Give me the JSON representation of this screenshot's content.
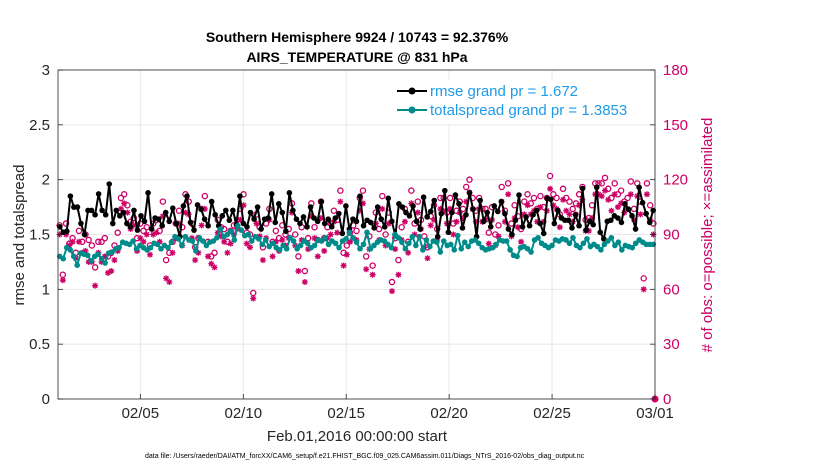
{
  "chart_data": {
    "type": "line",
    "title_line1": "Southern Hemisphere 9924 / 10743 = 92.376%",
    "title_line2": "AIRS_TEMPERATURE @ 831 hPa",
    "xlabel": "Feb.01,2016 00:00:00 start",
    "ylabel_left": "rmse and totalspread",
    "ylabel_right": "# of obs: o=possible; ×=assimilated",
    "xlim": [
      0,
      29
    ],
    "ylim_left": [
      0,
      3
    ],
    "ylim_right": [
      0,
      180
    ],
    "x_ticks": [
      4,
      9,
      14,
      19,
      24,
      29
    ],
    "x_tick_labels": [
      "02/05",
      "02/10",
      "02/15",
      "02/20",
      "02/25",
      "03/01"
    ],
    "y_ticks_left": [
      0,
      0.5,
      1,
      1.5,
      2,
      2.5,
      3
    ],
    "y_tick_labels_left": [
      "0",
      "0.5",
      "1",
      "1.5",
      "2",
      "2.5",
      "3"
    ],
    "y_ticks_right": [
      0,
      30,
      60,
      90,
      120,
      150,
      180
    ],
    "y_tick_labels_right": [
      "0",
      "30",
      "60",
      "90",
      "120",
      "150",
      "180"
    ],
    "grid": true,
    "legend_position": "top-right",
    "colors": {
      "rmse": "#000000",
      "spread": "#008B8B",
      "obs": "#CC0066",
      "right_axis": "#CC0066"
    },
    "series": [
      {
        "name": "rmse grand pr = 1.672",
        "axis": "left",
        "values": [
          1.57,
          1.52,
          1.53,
          1.85,
          1.75,
          1.75,
          1.6,
          1.5,
          1.72,
          1.72,
          1.68,
          1.87,
          1.72,
          1.68,
          1.96,
          1.6,
          1.72,
          1.67,
          1.7,
          1.6,
          1.57,
          1.72,
          1.54,
          1.67,
          1.62,
          1.88,
          1.55,
          1.65,
          1.64,
          1.58,
          1.7,
          1.62,
          1.74,
          1.6,
          1.48,
          1.76,
          1.85,
          1.61,
          1.54,
          1.77,
          1.73,
          1.64,
          1.58,
          1.8,
          1.68,
          1.58,
          1.67,
          1.72,
          1.63,
          1.72,
          1.59,
          1.85,
          1.6,
          1.57,
          1.7,
          1.64,
          1.75,
          1.55,
          1.64,
          1.65,
          1.87,
          1.61,
          1.78,
          1.7,
          1.53,
          1.88,
          1.72,
          1.64,
          1.6,
          1.66,
          1.57,
          1.75,
          1.65,
          1.62,
          1.8,
          1.6,
          1.64,
          1.57,
          1.65,
          1.69,
          1.51,
          1.76,
          1.55,
          1.64,
          1.62,
          1.85,
          1.58,
          1.63,
          1.61,
          1.56,
          1.75,
          1.64,
          1.57,
          1.83,
          1.62,
          1.49,
          1.78,
          1.75,
          1.7,
          1.67,
          1.76,
          1.62,
          1.55,
          1.84,
          1.66,
          1.71,
          1.81,
          1.48,
          1.69,
          1.9,
          1.52,
          1.7,
          1.86,
          1.78,
          1.56,
          1.68,
          1.88,
          1.73,
          1.48,
          1.81,
          1.62,
          1.7,
          1.57,
          1.76,
          1.71,
          1.8,
          1.69,
          1.55,
          1.5,
          1.63,
          1.86,
          1.57,
          1.66,
          1.58,
          1.68,
          1.72,
          1.6,
          1.51,
          1.83,
          1.82,
          1.6,
          1.72,
          1.65,
          1.63,
          1.63,
          1.56,
          1.68,
          1.58,
          1.92,
          1.54,
          1.62,
          1.59,
          1.93,
          1.52,
          1.46,
          1.62,
          1.63,
          1.67,
          1.65,
          1.61,
          1.78,
          1.73,
          1.67,
          1.55,
          1.93,
          1.79,
          1.69,
          1.61,
          1.72
        ]
      },
      {
        "name": "totalspread grand pr = 1.3853",
        "axis": "left",
        "values": [
          1.3,
          1.28,
          1.38,
          1.36,
          1.3,
          1.22,
          1.33,
          1.32,
          1.31,
          1.26,
          1.3,
          1.32,
          1.28,
          1.24,
          1.33,
          1.34,
          1.37,
          1.38,
          1.43,
          1.42,
          1.41,
          1.44,
          1.37,
          1.4,
          1.38,
          1.36,
          1.38,
          1.42,
          1.41,
          1.37,
          1.4,
          1.38,
          1.43,
          1.48,
          1.46,
          1.4,
          1.48,
          1.45,
          1.44,
          1.35,
          1.47,
          1.44,
          1.4,
          1.43,
          1.44,
          1.47,
          1.55,
          1.48,
          1.5,
          1.53,
          1.45,
          1.58,
          1.54,
          1.49,
          1.5,
          1.44,
          1.48,
          1.46,
          1.41,
          1.45,
          1.39,
          1.42,
          1.38,
          1.36,
          1.4,
          1.37,
          1.47,
          1.44,
          1.37,
          1.4,
          1.44,
          1.42,
          1.38,
          1.4,
          1.45,
          1.44,
          1.47,
          1.41,
          1.44,
          1.42,
          1.38,
          1.44,
          1.46,
          1.52,
          1.47,
          1.43,
          1.37,
          1.41,
          1.52,
          1.37,
          1.4,
          1.43,
          1.45,
          1.44,
          1.41,
          1.38,
          1.5,
          1.47,
          1.43,
          1.37,
          1.42,
          1.48,
          1.4,
          1.48,
          1.36,
          1.45,
          1.39,
          1.44,
          1.43,
          1.34,
          1.44,
          1.4,
          1.41,
          1.36,
          1.49,
          1.37,
          1.43,
          1.39,
          1.44,
          1.45,
          1.42,
          1.38,
          1.36,
          1.37,
          1.38,
          1.41,
          1.45,
          1.44,
          1.44,
          1.36,
          1.31,
          1.3,
          1.38,
          1.39,
          1.37,
          1.34,
          1.45,
          1.47,
          1.42,
          1.4,
          1.38,
          1.4,
          1.45,
          1.44,
          1.46,
          1.45,
          1.42,
          1.47,
          1.4,
          1.38,
          1.42,
          1.46,
          1.39,
          1.41,
          1.39,
          1.36,
          1.41,
          1.44,
          1.47,
          1.4,
          1.43,
          1.36,
          1.4,
          1.39,
          1.38,
          1.42,
          1.45,
          1.43,
          1.41,
          1.41,
          1.41
        ]
      },
      {
        "name": "obs possible",
        "axis": "right",
        "marker": "o",
        "values": [
          95,
          68,
          96,
          85,
          88,
          80,
          92,
          86,
          90,
          87,
          84,
          72,
          86,
          86,
          88,
          78,
          80,
          84,
          91,
          110,
          112,
          106,
          97,
          99,
          88,
          96,
          92,
          94,
          84,
          96,
          98,
          92,
          108,
          76,
          80,
          86,
          96,
          103,
          94,
          112,
          108,
          96,
          83,
          88,
          104,
          111,
          86,
          78,
          80,
          98,
          94,
          93,
          86,
          92,
          95,
          98,
          104,
          112,
          91,
          90,
          58,
          101,
          94,
          83,
          96,
          104,
          86,
          92,
          88,
          95,
          90,
          93,
          107,
          90,
          78,
          94,
          70,
          88,
          107,
          94,
          87,
          108,
          88,
          94,
          96,
          103,
          98,
          114,
          80,
          84,
          91,
          95,
          92,
          110,
          114,
          78,
          89,
          73,
          102,
          93,
          111,
          90,
          102,
          64,
          88,
          76,
          94,
          104,
          86,
          114,
          96,
          108,
          98,
          89,
          83,
          100,
          106,
          93,
          110,
          110,
          102,
          110,
          96,
          103,
          108,
          104,
          116,
          120,
          110,
          103,
          110,
          104,
          104,
          91,
          105,
          90,
          95,
          116,
          103,
          118,
          96,
          106,
          100,
          93,
          108,
          112,
          107,
          110,
          104,
          111,
          105,
          110,
          122,
          112,
          110,
          101,
          115,
          110,
          108,
          104,
          107,
          112,
          116,
          98,
          99,
          106,
          118,
          118,
          118,
          121,
          115,
          110,
          118,
          112,
          114,
          108,
          110,
          119,
          104,
          118,
          108,
          66,
          118,
          106,
          96
        ]
      },
      {
        "name": "obs assimilated",
        "axis": "right",
        "marker": "x",
        "values": [
          90,
          65,
          90,
          84,
          86,
          77,
          86,
          80,
          81,
          75,
          75,
          62,
          80,
          75,
          78,
          69,
          70,
          76,
          81,
          104,
          107,
          102,
          93,
          95,
          81,
          88,
          86,
          90,
          79,
          90,
          91,
          86,
          100,
          66,
          64,
          80,
          88,
          96,
          84,
          102,
          101,
          88,
          76,
          80,
          95,
          104,
          78,
          74,
          72,
          91,
          89,
          86,
          80,
          85,
          90,
          93,
          98,
          106,
          85,
          83,
          55,
          96,
          89,
          76,
          88,
          98,
          78,
          86,
          81,
          87,
          84,
          88,
          102,
          84,
          70,
          87,
          64,
          82,
          100,
          88,
          78,
          99,
          81,
          88,
          90,
          97,
          91,
          108,
          73,
          79,
          86,
          88,
          87,
          103,
          107,
          71,
          82,
          68,
          96,
          87,
          104,
          84,
          96,
          59,
          82,
          68,
          87,
          97,
          80,
          107,
          90,
          102,
          93,
          83,
          77,
          95,
          98,
          87,
          104,
          103,
          96,
          104,
          90,
          97,
          102,
          99,
          108,
          113,
          104,
          97,
          104,
          97,
          98,
          85,
          98,
          84,
          89,
          108,
          97,
          112,
          89,
          99,
          94,
          86,
          101,
          106,
          101,
          103,
          97,
          105,
          97,
          103,
          115,
          106,
          104,
          94,
          109,
          103,
          101,
          97,
          101,
          106,
          109,
          92,
          92,
          99,
          112,
          112,
          111,
          114,
          109,
          103,
          112,
          105,
          107,
          102,
          104,
          112,
          98,
          111,
          101,
          60,
          112,
          98,
          90
        ]
      }
    ]
  },
  "legend": {
    "rmse": "rmse grand pr = 1.672",
    "spread": "totalspread grand pr = 1.3853"
  },
  "footer": "data file: /Users/raeder/DAI/ATM_forcXX/CAM6_setup/f.e21.FHIST_BGC.f09_025.CAM6assim.011/Diags_NTrS_2016-02/obs_diag_output.nc"
}
